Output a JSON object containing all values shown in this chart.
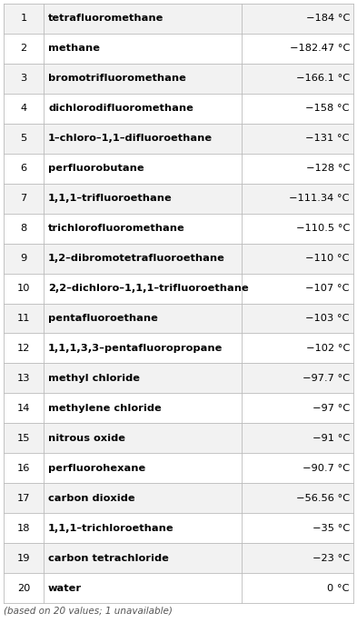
{
  "rows": [
    {
      "num": "1",
      "name": "tetrafluoromethane",
      "value": "−184 °C"
    },
    {
      "num": "2",
      "name": "methane",
      "value": "−182.47 °C"
    },
    {
      "num": "3",
      "name": "bromotrifluoromethane",
      "value": "−166.1 °C"
    },
    {
      "num": "4",
      "name": "dichlorodifluoromethane",
      "value": "−158 °C"
    },
    {
      "num": "5",
      "name": "1–chloro–1,1–difluoroethane",
      "value": "−131 °C"
    },
    {
      "num": "6",
      "name": "perfluorobutane",
      "value": "−128 °C"
    },
    {
      "num": "7",
      "name": "1,1,1–trifluoroethane",
      "value": "−111.34 °C"
    },
    {
      "num": "8",
      "name": "trichlorofluoromethane",
      "value": "−110.5 °C"
    },
    {
      "num": "9",
      "name": "1,2–dibromotetrafluoroethane",
      "value": "−110 °C"
    },
    {
      "num": "10",
      "name": "2,2–dichloro–1,1,1–trifluoroethane",
      "value": "−107 °C"
    },
    {
      "num": "11",
      "name": "pentafluoroethane",
      "value": "−103 °C"
    },
    {
      "num": "12",
      "name": "1,1,1,3,3–pentafluoropropane",
      "value": "−102 °C"
    },
    {
      "num": "13",
      "name": "methyl chloride",
      "value": "−97.7 °C"
    },
    {
      "num": "14",
      "name": "methylene chloride",
      "value": "−97 °C"
    },
    {
      "num": "15",
      "name": "nitrous oxide",
      "value": "−91 °C"
    },
    {
      "num": "16",
      "name": "perfluorohexane",
      "value": "−90.7 °C"
    },
    {
      "num": "17",
      "name": "carbon dioxide",
      "value": "−56.56 °C"
    },
    {
      "num": "18",
      "name": "1,1,1–trichloroethane",
      "value": "−35 °C"
    },
    {
      "num": "19",
      "name": "carbon tetrachloride",
      "value": "−23 °C"
    },
    {
      "num": "20",
      "name": "water",
      "value": "0 °C"
    }
  ],
  "footer": "(based on 20 values; 1 unavailable)",
  "bg_color": "#ffffff",
  "border_color": "#bbbbbb",
  "text_color": "#000000",
  "row_color_even": "#f2f2f2",
  "row_color_odd": "#ffffff",
  "font_size": 8.2,
  "footer_font_size": 7.5,
  "fig_width": 3.93,
  "fig_height": 6.85,
  "dpi": 100
}
